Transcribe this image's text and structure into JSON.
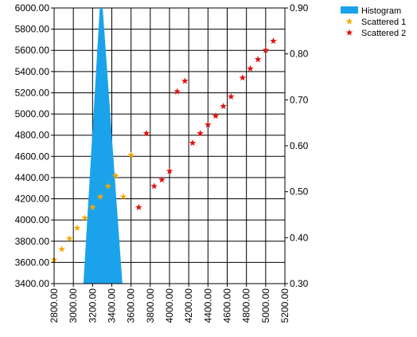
{
  "chart_data": {
    "type": "scatter",
    "title": "",
    "xlabel": "",
    "ylabel": "",
    "y2label": "",
    "grid": true,
    "legend_position": "top-right",
    "xlim": [
      2800,
      5200
    ],
    "ylim": [
      3400,
      6000
    ],
    "y2lim": [
      0.3,
      0.9
    ],
    "x_ticks": [
      "2800.00",
      "3000.00",
      "3200.00",
      "3400.00",
      "3600.00",
      "3800.00",
      "4000.00",
      "4200.00",
      "4400.00",
      "4600.00",
      "4800.00",
      "5000.00",
      "5200.00"
    ],
    "y_ticks": [
      "6000.00",
      "5800.00",
      "5600.00",
      "5400.00",
      "5200.00",
      "5000.00",
      "4800.00",
      "4600.00",
      "4400.00",
      "4200.00",
      "4000.00",
      "3800.00",
      "3600.00",
      "3400.00"
    ],
    "y2_ticks": [
      "0.90",
      "0.80",
      "0.70",
      "0.60",
      "0.50",
      "0.40",
      "0.30"
    ],
    "series": [
      {
        "name": "Histogram",
        "kind": "area",
        "color": "#1aa3ea",
        "points": [
          [
            3105,
            3400
          ],
          [
            3275,
            6000
          ],
          [
            3305,
            6000
          ],
          [
            3510,
            3400
          ]
        ]
      },
      {
        "name": "Scattered 1",
        "kind": "star",
        "axis": "y2",
        "color": "#f5a800",
        "points": [
          [
            2800,
            0.352
          ],
          [
            2880,
            0.375
          ],
          [
            2960,
            0.398
          ],
          [
            3040,
            0.421
          ],
          [
            3120,
            0.443
          ],
          [
            3200,
            0.466
          ],
          [
            3280,
            0.489
          ],
          [
            3360,
            0.512
          ],
          [
            3440,
            0.535
          ],
          [
            3520,
            0.489
          ],
          [
            3600,
            0.58
          ]
        ]
      },
      {
        "name": "Scattered 2",
        "kind": "star",
        "axis": "y2",
        "color": "#e51010",
        "points": [
          [
            3680,
            0.466
          ],
          [
            3760,
            0.627
          ],
          [
            3840,
            0.512
          ],
          [
            3920,
            0.526
          ],
          [
            4000,
            0.545
          ],
          [
            4080,
            0.718
          ],
          [
            4160,
            0.741
          ],
          [
            4240,
            0.606
          ],
          [
            4320,
            0.627
          ],
          [
            4400,
            0.646
          ],
          [
            4480,
            0.665
          ],
          [
            4560,
            0.686
          ],
          [
            4640,
            0.707
          ],
          [
            4760,
            0.748
          ],
          [
            4840,
            0.768
          ],
          [
            4920,
            0.788
          ],
          [
            5000,
            0.808
          ],
          [
            5080,
            0.828
          ]
        ]
      }
    ]
  }
}
